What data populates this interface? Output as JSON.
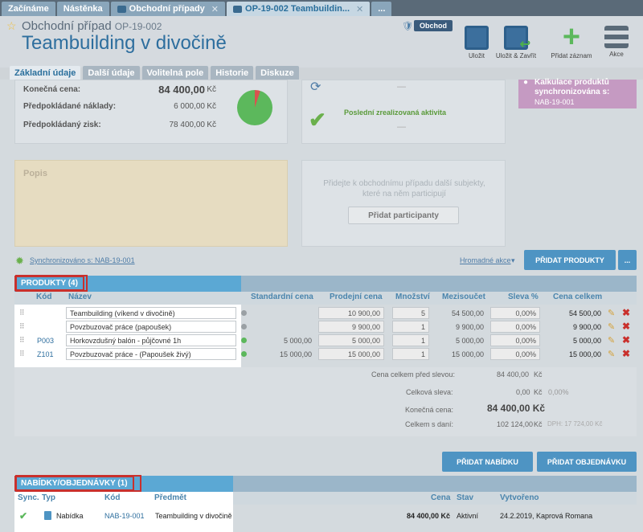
{
  "tabs": [
    {
      "label": "Začínáme"
    },
    {
      "label": "Nástěnka"
    },
    {
      "label": "Obchodní případy"
    },
    {
      "label": "OP-19-002 Teambuildin..."
    },
    {
      "label": "..."
    }
  ],
  "header": {
    "record_type": "Obchodní případ",
    "record_code": "OP-19-002",
    "title": "Teambuilding v divočině",
    "badge": "Obchod",
    "toolbar": {
      "save": "Uložit",
      "save_close": "Uložit & Zavřít",
      "add_record": "Přidat záznam",
      "actions": "Akce"
    }
  },
  "subtabs": [
    "Základní údaje",
    "Další údaje",
    "Volitelná pole",
    "Historie",
    "Diskuze"
  ],
  "finance": [
    {
      "label": "Konečná cena:",
      "value": "84 400,00",
      "currency": "Kč"
    },
    {
      "label": "Předpokládané náklady:",
      "value": "6 000,00",
      "currency": "Kč"
    },
    {
      "label": "Předpokládaný zisk:",
      "value": "78 400,00",
      "currency": "Kč"
    }
  ],
  "activity": {
    "last_done": "Poslední zrealizovaná aktivita",
    "dash1": "—",
    "dash2": "—"
  },
  "sync_box": {
    "title": "Kalkulace produktů synchronizována s:",
    "code": "NAB-19-001"
  },
  "popis": {
    "label": "Popis"
  },
  "participants": {
    "hint": "Přidejte k obchodnímu případu další subjekty, které na něm participují",
    "button": "Přidat participanty"
  },
  "sync_link": "Synchronizováno s: NAB-19-001",
  "bulk_action": "Hromadné akce",
  "add_products": "PŘIDAT PRODUKTY",
  "more": "...",
  "products": {
    "header": "PRODUKTY (4)",
    "columns": {
      "code": "Kód",
      "name": "Název",
      "std": "Standardní cena",
      "sale": "Prodejní cena",
      "qty": "Množství",
      "subtotal": "Mezisoučet",
      "discount": "Sleva %",
      "total": "Cena celkem"
    },
    "rows": [
      {
        "code": "",
        "name": "Teambuilding (víkend v divočině)",
        "std": "",
        "sale": "10 900,00",
        "qty": "5",
        "subtotal": "54 500,00",
        "discount": "0,00%",
        "total": "54 500,00",
        "dot": "#9aa0a4"
      },
      {
        "code": "",
        "name": "Povzbuzovač práce (papoušek)",
        "std": "",
        "sale": "9 900,00",
        "qty": "1",
        "subtotal": "9 900,00",
        "discount": "0,00%",
        "total": "9 900,00",
        "dot": "#9aa0a4"
      },
      {
        "code": "P003",
        "name": "Horkovzdušný balón - půjčovné 1h",
        "std": "5 000,00",
        "sale": "5 000,00",
        "qty": "1",
        "subtotal": "5 000,00",
        "discount": "0,00%",
        "total": "5 000,00",
        "dot": "#5cb85c"
      },
      {
        "code": "Z101",
        "name": "Povzbuzovač práce - (Papoušek živý)",
        "std": "15 000,00",
        "sale": "15 000,00",
        "qty": "1",
        "subtotal": "15 000,00",
        "discount": "0,00%",
        "total": "15 000,00",
        "dot": "#5cb85c"
      }
    ],
    "totals": {
      "before_discount_label": "Cena celkem před slevou:",
      "before_discount": "84 400,00",
      "cur": "Kč",
      "discount_label": "Celková sleva:",
      "discount": "0,00",
      "discount_pct": "0,00%",
      "final_label": "Konečná cena:",
      "final": "84 400,00 Kč",
      "with_tax_label": "Celkem s daní:",
      "with_tax": "102 124,00",
      "tax": "DPH: 17 724,00 Kč"
    }
  },
  "buttons": {
    "add_offer": "PŘIDAT NABÍDKU",
    "add_order": "PŘIDAT OBJEDNÁVKU"
  },
  "offers": {
    "header": "NABÍDKY/OBJEDNÁVKY (1)",
    "columns": {
      "sync": "Sync.",
      "type": "Typ",
      "code": "Kód",
      "subject": "Předmět",
      "price": "Cena",
      "status": "Stav",
      "created": "Vytvořeno"
    },
    "row": {
      "type": "Nabídka",
      "code": "NAB-19-001",
      "subject": "Teambuilding v divočině",
      "price": "84 400,00 Kč",
      "status": "Aktivní",
      "created": "24.2.2019, Kaprová Romana"
    }
  },
  "colors": {
    "accent": "#2d6e9e",
    "button": "#4e94c3",
    "highlight": "#c9302c"
  }
}
